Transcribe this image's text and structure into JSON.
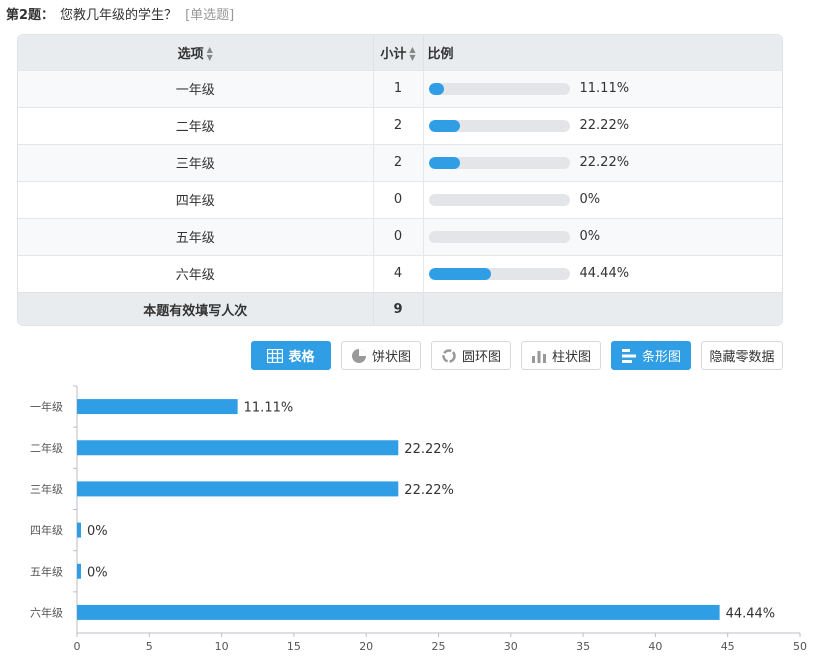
{
  "question": {
    "number": "第2题：",
    "text": "您教几年级的学生？",
    "type": "[单选题]"
  },
  "table": {
    "headers": {
      "option": "选项",
      "count": "小计",
      "ratio": "比例"
    },
    "rows": [
      {
        "label": "一年级",
        "count": "1",
        "pct": "11.11%",
        "value": 11.11
      },
      {
        "label": "二年级",
        "count": "2",
        "pct": "22.22%",
        "value": 22.22
      },
      {
        "label": "三年级",
        "count": "2",
        "pct": "22.22%",
        "value": 22.22
      },
      {
        "label": "四年级",
        "count": "0",
        "pct": "0%",
        "value": 0
      },
      {
        "label": "五年级",
        "count": "0",
        "pct": "0%",
        "value": 0
      },
      {
        "label": "六年级",
        "count": "4",
        "pct": "44.44%",
        "value": 44.44
      }
    ],
    "total_label": "本题有效填写人次",
    "total": "9"
  },
  "buttons": {
    "table": "表格",
    "pie": "饼状图",
    "ring": "圆环图",
    "column": "柱状图",
    "bar": "条形图",
    "hide_zero": "隐藏零数据"
  },
  "colors": {
    "accent": "#2f9ee5",
    "bar_track": "#e3e5e8"
  },
  "chart_data": {
    "type": "bar",
    "orientation": "horizontal",
    "categories": [
      "一年级",
      "二年级",
      "三年级",
      "四年级",
      "五年级",
      "六年级"
    ],
    "values": [
      11.11,
      22.22,
      22.22,
      0,
      0,
      44.44
    ],
    "labels": [
      "11.11%",
      "22.22%",
      "22.22%",
      "0%",
      "0%",
      "44.44%"
    ],
    "xlim": [
      0,
      50
    ],
    "xticks": [
      "0",
      "5",
      "10",
      "15",
      "20",
      "25",
      "30",
      "35",
      "40",
      "45",
      "50"
    ],
    "grid": false
  }
}
